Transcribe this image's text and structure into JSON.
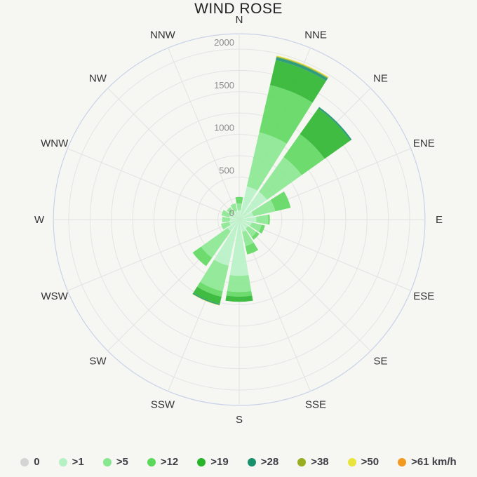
{
  "page": {
    "background": "#f6f6f3"
  },
  "chart_data": {
    "type": "windrose-stacked-polar-bar",
    "title": "WIND ROSE",
    "directions": [
      "N",
      "NNE",
      "NE",
      "ENE",
      "E",
      "ESE",
      "SE",
      "SSE",
      "S",
      "SSW",
      "SW",
      "WSW",
      "W",
      "WNW",
      "NW",
      "NNW"
    ],
    "radial_axis": {
      "ticks": [
        0,
        500,
        1000,
        1500,
        2000
      ],
      "grid_step": 250,
      "max": 2180,
      "tick_label_color": "#8b8b8b"
    },
    "grid": {
      "inner_circle_color": "#e4e4e4",
      "outer_circle_color": "#c9d3e7",
      "spoke_color": "#e2e2e2"
    },
    "legend_position": "bottom",
    "series": [
      {
        "label": "0",
        "color": "#d4d4d4",
        "values": [
          0,
          0,
          0,
          0,
          0,
          0,
          0,
          0,
          0,
          0,
          0,
          0,
          0,
          0,
          0,
          0
        ]
      },
      {
        "label": ">1",
        "color": "#b6f1c4",
        "values": [
          110,
          400,
          400,
          170,
          200,
          150,
          130,
          150,
          660,
          555,
          170,
          120,
          110,
          120,
          100,
          110
        ]
      },
      {
        "label": ">5",
        "color": "#86e78e",
        "values": [
          80,
          650,
          500,
          265,
          140,
          120,
          120,
          170,
          190,
          310,
          380,
          100,
          90,
          95,
          80,
          85
        ]
      },
      {
        "label": ">12",
        "color": "#5bd75b",
        "values": [
          75,
          570,
          330,
          185,
          20,
          40,
          40,
          100,
          55,
          65,
          120,
          0,
          0,
          0,
          0,
          0
        ]
      },
      {
        "label": ">19",
        "color": "#27b42a",
        "values": [
          0,
          300,
          370,
          0,
          0,
          0,
          0,
          0,
          60,
          85,
          0,
          0,
          0,
          0,
          0,
          0
        ]
      },
      {
        "label": ">28",
        "color": "#17916b",
        "values": [
          0,
          35,
          20,
          0,
          0,
          0,
          0,
          0,
          0,
          15,
          0,
          0,
          0,
          0,
          0,
          0
        ]
      },
      {
        "label": ">38",
        "color": "#98ae20",
        "values": [
          0,
          10,
          0,
          0,
          0,
          0,
          0,
          0,
          0,
          0,
          0,
          0,
          0,
          0,
          0,
          0
        ]
      },
      {
        "label": ">50",
        "color": "#e8e43c",
        "values": [
          0,
          10,
          0,
          0,
          0,
          0,
          0,
          0,
          0,
          5,
          0,
          0,
          0,
          0,
          0,
          0
        ]
      },
      {
        "label": ">61 km/h",
        "color": "#f2991f",
        "values": [
          0,
          0,
          0,
          0,
          0,
          0,
          0,
          0,
          0,
          0,
          0,
          0,
          0,
          0,
          0,
          0
        ]
      }
    ]
  }
}
